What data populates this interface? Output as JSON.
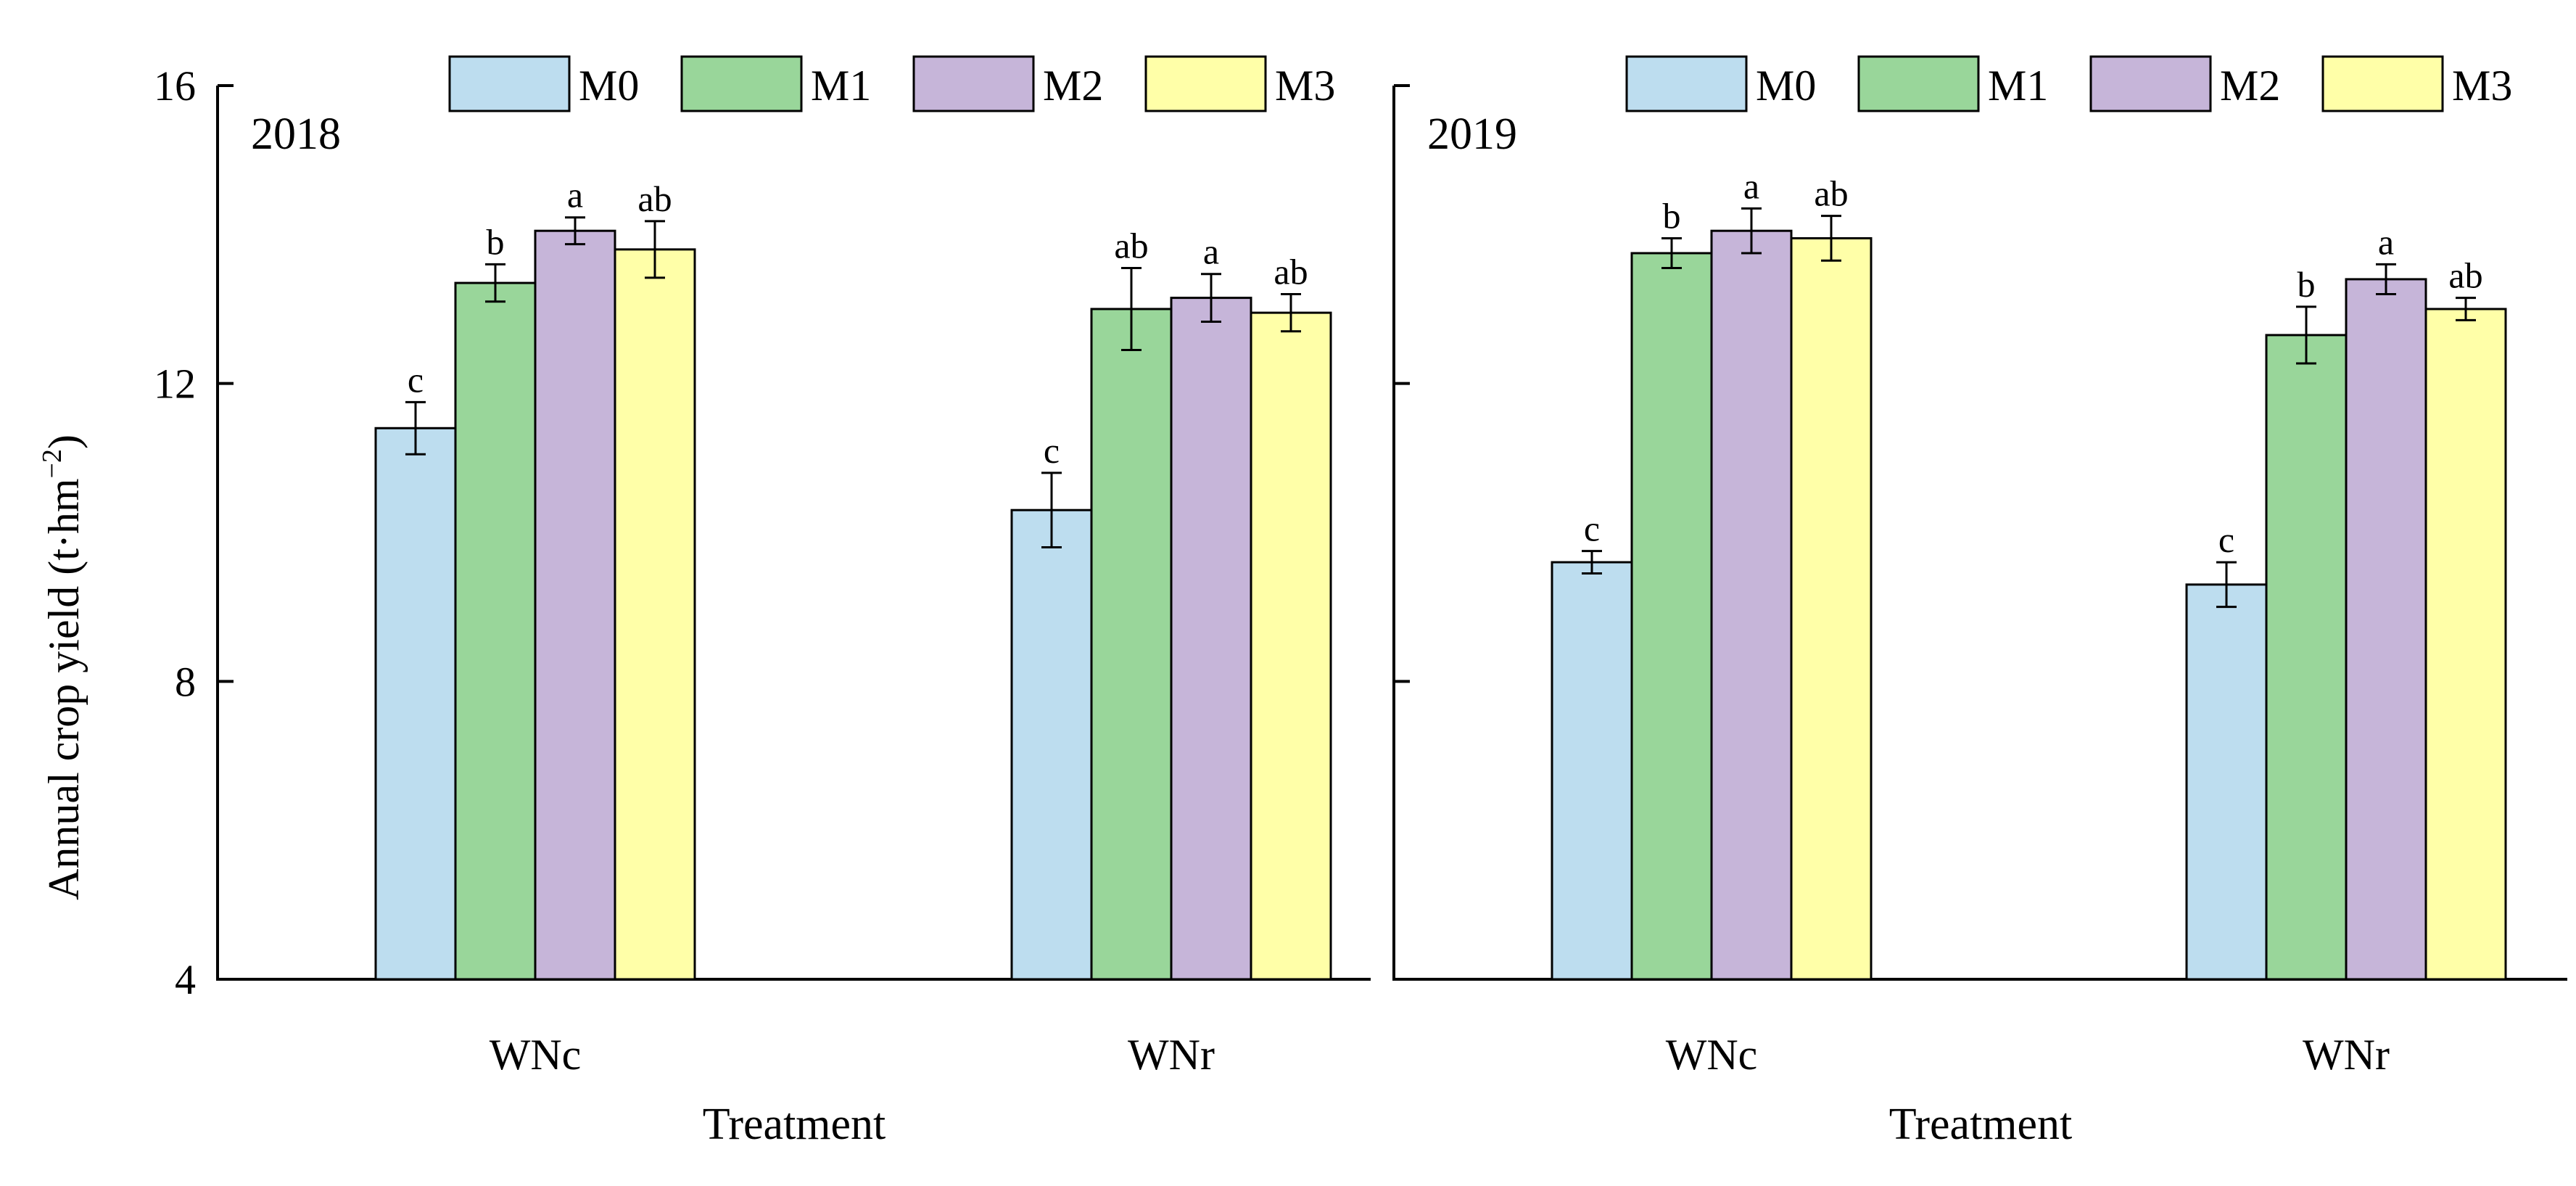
{
  "y_axis_title": {
    "main": "Annual crop yield (t·hm",
    "sup": "−2",
    "close": ")"
  },
  "chart_data": [
    {
      "type": "bar",
      "title": "2018",
      "xlabel": "Treatment",
      "ylabel": "Annual crop yield (t·hm−2)",
      "ylim": [
        4,
        16
      ],
      "yticks": [
        4,
        8,
        12,
        16
      ],
      "ytick_labels": [
        "4",
        "8",
        "12",
        "16"
      ],
      "categories": [
        "WNc",
        "WNr"
      ],
      "legend_position": "top",
      "series": [
        {
          "name": "M0",
          "color": "#BDDDEF",
          "values": [
            11.4,
            10.3
          ],
          "errors": [
            0.35,
            0.5
          ],
          "letters": [
            "c",
            "c"
          ]
        },
        {
          "name": "M1",
          "color": "#99D69A",
          "values": [
            13.35,
            13.0
          ],
          "errors": [
            0.25,
            0.55
          ],
          "letters": [
            "b",
            "ab"
          ]
        },
        {
          "name": "M2",
          "color": "#C6B5D9",
          "values": [
            14.05,
            13.15
          ],
          "errors": [
            0.18,
            0.32
          ],
          "letters": [
            "a",
            "a"
          ]
        },
        {
          "name": "M3",
          "color": "#FFFFA8",
          "values": [
            13.8,
            12.95
          ],
          "errors": [
            0.38,
            0.25
          ],
          "letters": [
            "ab",
            "ab"
          ]
        }
      ]
    },
    {
      "type": "bar",
      "title": "2019",
      "xlabel": "Treatment",
      "ylabel": "",
      "ylim": [
        4,
        16
      ],
      "yticks": [
        4,
        8,
        12,
        16
      ],
      "ytick_labels": [],
      "categories": [
        "WNc",
        "WNr"
      ],
      "legend_position": "top",
      "series": [
        {
          "name": "M0",
          "color": "#BDDDEF",
          "values": [
            9.6,
            9.3
          ],
          "errors": [
            0.15,
            0.3
          ],
          "letters": [
            "c",
            "c"
          ]
        },
        {
          "name": "M1",
          "color": "#99D69A",
          "values": [
            13.75,
            12.65
          ],
          "errors": [
            0.2,
            0.38
          ],
          "letters": [
            "b",
            "b"
          ]
        },
        {
          "name": "M2",
          "color": "#C6B5D9",
          "values": [
            14.05,
            13.4
          ],
          "errors": [
            0.3,
            0.2
          ],
          "letters": [
            "a",
            "a"
          ]
        },
        {
          "name": "M3",
          "color": "#FFFFA8",
          "values": [
            13.95,
            13.0
          ],
          "errors": [
            0.3,
            0.15
          ],
          "letters": [
            "ab",
            "ab"
          ]
        }
      ]
    }
  ]
}
